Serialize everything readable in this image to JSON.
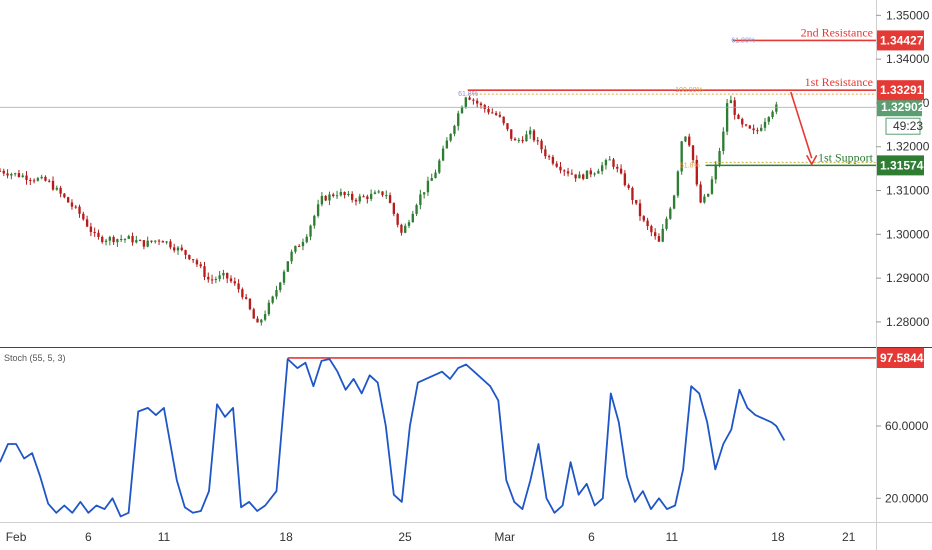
{
  "chart_data": [
    {
      "type": "candlestick",
      "colors": {
        "up": "#2e7d32",
        "down": "#b71c1c",
        "resistance": "#e53935",
        "support": "#2e7d32",
        "current": "#5a9e72",
        "arrow": "#e53935"
      },
      "y_ticks": [
        "1.35000",
        "1.34000",
        "1.33000",
        "1.32000",
        "1.31000",
        "1.30000",
        "1.29000",
        "1.28000"
      ],
      "ylim": [
        1.2745,
        1.3535
      ],
      "price_path": [
        {
          "x": 0,
          "y": 1.3145
        },
        {
          "x": 3,
          "y": 1.312
        },
        {
          "x": 5,
          "y": 1.3045
        },
        {
          "x": 6,
          "y": 1.299
        },
        {
          "x": 8,
          "y": 1.299
        },
        {
          "x": 9,
          "y": 1.2978
        },
        {
          "x": 10,
          "y": 1.299
        },
        {
          "x": 12,
          "y": 1.2945
        },
        {
          "x": 13,
          "y": 1.2895
        },
        {
          "x": 14,
          "y": 1.2905
        },
        {
          "x": 15,
          "y": 1.287
        },
        {
          "x": 16,
          "y": 1.279
        },
        {
          "x": 17,
          "y": 1.2855
        },
        {
          "x": 18,
          "y": 1.295
        },
        {
          "x": 19,
          "y": 1.2995
        },
        {
          "x": 20,
          "y": 1.308
        },
        {
          "x": 21,
          "y": 1.3095
        },
        {
          "x": 22,
          "y": 1.308
        },
        {
          "x": 24,
          "y": 1.3095
        },
        {
          "x": 25,
          "y": 1.3
        },
        {
          "x": 26,
          "y": 1.308
        },
        {
          "x": 27,
          "y": 1.3135
        },
        {
          "x": 28,
          "y": 1.323
        },
        {
          "x": 29,
          "y": 1.332
        },
        {
          "x": 30,
          "y": 1.329
        },
        {
          "x": 31,
          "y": 1.327
        },
        {
          "x": 32,
          "y": 1.321
        },
        {
          "x": 33,
          "y": 1.323
        },
        {
          "x": 34,
          "y": 1.318
        },
        {
          "x": 35,
          "y": 1.315
        },
        {
          "x": 36,
          "y": 1.313
        },
        {
          "x": 37,
          "y": 1.3145
        },
        {
          "x": 38,
          "y": 1.317
        },
        {
          "x": 39,
          "y": 1.311
        },
        {
          "x": 40,
          "y": 1.303
        },
        {
          "x": 41,
          "y": 1.298
        },
        {
          "x": 42,
          "y": 1.31
        },
        {
          "x": 42.5,
          "y": 1.324
        },
        {
          "x": 43,
          "y": 1.32
        },
        {
          "x": 43.5,
          "y": 1.307
        },
        {
          "x": 44,
          "y": 1.3085
        },
        {
          "x": 44.5,
          "y": 1.315
        },
        {
          "x": 45,
          "y": 1.323
        },
        {
          "x": 45.3,
          "y": 1.332
        },
        {
          "x": 46,
          "y": 1.325
        },
        {
          "x": 47,
          "y": 1.323
        },
        {
          "x": 48,
          "y": 1.3285
        },
        {
          "x": 48.3,
          "y": 1.329
        }
      ],
      "levels": [
        {
          "name": "2nd Resistance",
          "value": "1.34427",
          "y": 1.34427,
          "kind": "resistance"
        },
        {
          "name": "1st Resistance",
          "value": "1.33291",
          "y": 1.33291,
          "kind": "resistance"
        },
        {
          "name": "1st Support",
          "value": "1.31574",
          "y": 1.31574,
          "kind": "support"
        }
      ],
      "current_price": {
        "value": "1.32902",
        "y": 1.32902,
        "countdown": "49:23"
      },
      "fib_labels": [
        {
          "text": "61.80%",
          "x": 45.5,
          "y": 1.34427
        },
        {
          "text": "100.00%",
          "x": 42,
          "y": 1.33291
        },
        {
          "text": "61.8%",
          "x": 28.5,
          "y": 1.332
        },
        {
          "text": "61.8%",
          "x": 42.3,
          "y": 1.31574
        }
      ],
      "projection_arrow": {
        "from": {
          "x": 49.2,
          "y": 1.3325
        },
        "to": {
          "x": 50.5,
          "y": 1.316
        }
      }
    },
    {
      "type": "line",
      "indicator": "Stoch (55, 5, 3)",
      "y_ticks": [
        "60.0000",
        "20.0000"
      ],
      "ylim": [
        8,
        102
      ],
      "level": {
        "value": "97.5844",
        "y": 97.5844
      },
      "series": [
        {
          "values": [
            {
              "x": 0,
              "y": 40
            },
            {
              "x": 0.5,
              "y": 50
            },
            {
              "x": 1,
              "y": 50
            },
            {
              "x": 1.5,
              "y": 42
            },
            {
              "x": 2,
              "y": 45
            },
            {
              "x": 2.5,
              "y": 32
            },
            {
              "x": 3,
              "y": 17
            },
            {
              "x": 3.5,
              "y": 12
            },
            {
              "x": 4,
              "y": 16
            },
            {
              "x": 4.5,
              "y": 12
            },
            {
              "x": 5,
              "y": 18
            },
            {
              "x": 5.5,
              "y": 12
            },
            {
              "x": 6,
              "y": 16
            },
            {
              "x": 6.5,
              "y": 14
            },
            {
              "x": 7,
              "y": 20
            },
            {
              "x": 7.5,
              "y": 10
            },
            {
              "x": 8,
              "y": 12
            },
            {
              "x": 8.6,
              "y": 68
            },
            {
              "x": 9.2,
              "y": 70
            },
            {
              "x": 9.7,
              "y": 66
            },
            {
              "x": 10.2,
              "y": 70
            },
            {
              "x": 11,
              "y": 30
            },
            {
              "x": 11.5,
              "y": 15
            },
            {
              "x": 12,
              "y": 12
            },
            {
              "x": 12.5,
              "y": 13
            },
            {
              "x": 13,
              "y": 24
            },
            {
              "x": 13.5,
              "y": 72
            },
            {
              "x": 14,
              "y": 65
            },
            {
              "x": 14.5,
              "y": 70
            },
            {
              "x": 15,
              "y": 15
            },
            {
              "x": 15.5,
              "y": 18
            },
            {
              "x": 16,
              "y": 13
            },
            {
              "x": 16.5,
              "y": 16
            },
            {
              "x": 17.2,
              "y": 24
            },
            {
              "x": 17.9,
              "y": 97
            },
            {
              "x": 18.5,
              "y": 92
            },
            {
              "x": 19,
              "y": 95
            },
            {
              "x": 19.5,
              "y": 82
            },
            {
              "x": 20,
              "y": 96
            },
            {
              "x": 20.5,
              "y": 97
            },
            {
              "x": 21,
              "y": 90
            },
            {
              "x": 21.5,
              "y": 80
            },
            {
              "x": 22,
              "y": 86
            },
            {
              "x": 22.5,
              "y": 78
            },
            {
              "x": 23,
              "y": 88
            },
            {
              "x": 23.5,
              "y": 84
            },
            {
              "x": 24,
              "y": 60
            },
            {
              "x": 24.5,
              "y": 22
            },
            {
              "x": 25,
              "y": 18
            },
            {
              "x": 25.5,
              "y": 60
            },
            {
              "x": 26,
              "y": 84
            },
            {
              "x": 26.5,
              "y": 86
            },
            {
              "x": 27,
              "y": 88
            },
            {
              "x": 27.5,
              "y": 90
            },
            {
              "x": 28,
              "y": 86
            },
            {
              "x": 28.5,
              "y": 92
            },
            {
              "x": 29,
              "y": 94
            },
            {
              "x": 29.5,
              "y": 90
            },
            {
              "x": 30,
              "y": 86
            },
            {
              "x": 30.5,
              "y": 82
            },
            {
              "x": 31,
              "y": 74
            },
            {
              "x": 31.5,
              "y": 30
            },
            {
              "x": 32,
              "y": 18
            },
            {
              "x": 32.5,
              "y": 14
            },
            {
              "x": 33,
              "y": 30
            },
            {
              "x": 33.5,
              "y": 50
            },
            {
              "x": 34,
              "y": 20
            },
            {
              "x": 34.5,
              "y": 12
            },
            {
              "x": 35,
              "y": 16
            },
            {
              "x": 35.5,
              "y": 40
            },
            {
              "x": 36,
              "y": 22
            },
            {
              "x": 36.5,
              "y": 28
            },
            {
              "x": 37,
              "y": 16
            },
            {
              "x": 37.5,
              "y": 20
            },
            {
              "x": 38,
              "y": 78
            },
            {
              "x": 38.5,
              "y": 62
            },
            {
              "x": 39,
              "y": 32
            },
            {
              "x": 39.5,
              "y": 18
            },
            {
              "x": 40,
              "y": 24
            },
            {
              "x": 40.5,
              "y": 14
            },
            {
              "x": 41,
              "y": 20
            },
            {
              "x": 41.5,
              "y": 14
            },
            {
              "x": 42,
              "y": 16
            },
            {
              "x": 42.5,
              "y": 36
            },
            {
              "x": 43,
              "y": 82
            },
            {
              "x": 43.5,
              "y": 78
            },
            {
              "x": 44,
              "y": 62
            },
            {
              "x": 44.5,
              "y": 36
            },
            {
              "x": 45,
              "y": 50
            },
            {
              "x": 45.5,
              "y": 58
            },
            {
              "x": 46,
              "y": 80
            },
            {
              "x": 46.5,
              "y": 70
            },
            {
              "x": 47,
              "y": 66
            },
            {
              "x": 47.5,
              "y": 64
            },
            {
              "x": 48,
              "y": 62
            },
            {
              "x": 48.3,
              "y": 60
            },
            {
              "x": 48.8,
              "y": 52
            }
          ]
        }
      ]
    }
  ],
  "x_ticks": [
    {
      "label": "Feb",
      "x": 1
    },
    {
      "label": "6",
      "x": 5.5
    },
    {
      "label": "11",
      "x": 10.2
    },
    {
      "label": "18",
      "x": 17.8
    },
    {
      "label": "25",
      "x": 25.2
    },
    {
      "label": "Mar",
      "x": 31.4
    },
    {
      "label": "6",
      "x": 36.8
    },
    {
      "label": "11",
      "x": 41.8
    },
    {
      "label": "18",
      "x": 48.4
    },
    {
      "label": "21",
      "x": 52.8
    }
  ],
  "xlim": [
    0,
    54.5
  ]
}
